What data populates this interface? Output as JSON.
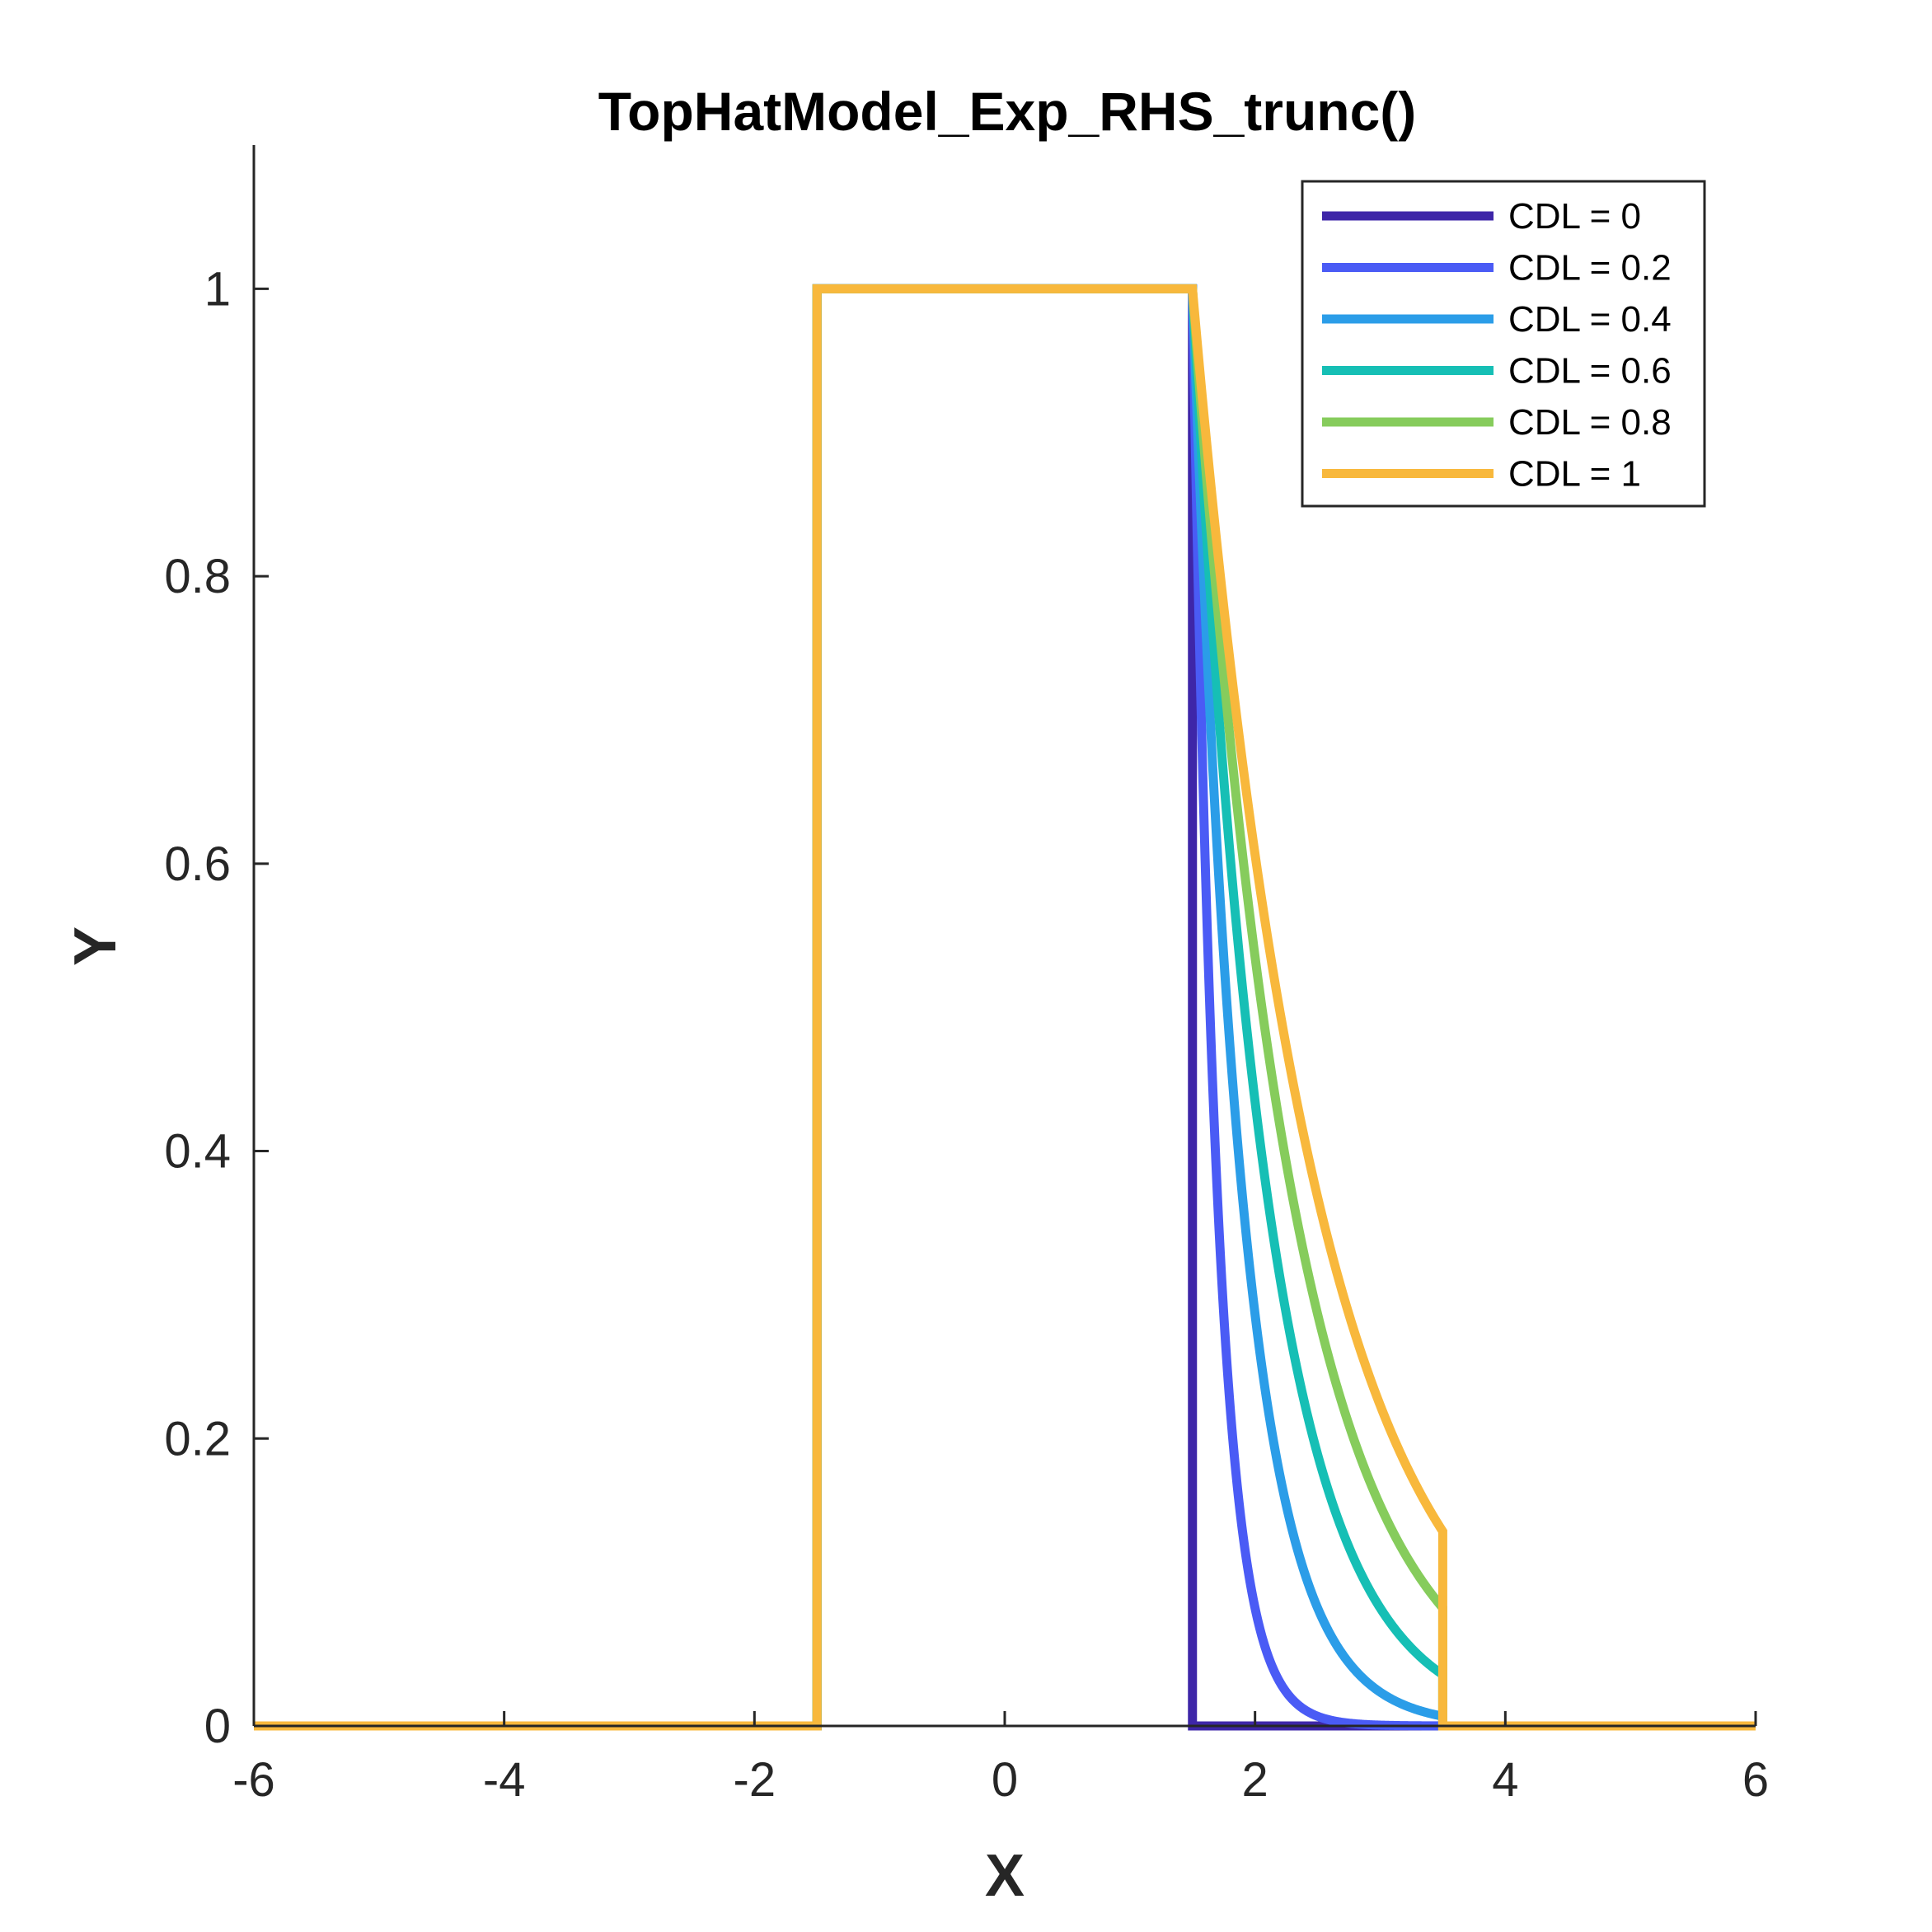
{
  "chart_data": {
    "type": "line",
    "title": "TopHatModel_Exp_RHS_trunc()",
    "xlabel": "X",
    "ylabel": "Y",
    "xlim": [
      -6,
      6
    ],
    "ylim": [
      0,
      1.1
    ],
    "xticks": [
      -6,
      -4,
      -2,
      0,
      2,
      4,
      6
    ],
    "xtick_labels": [
      "-6",
      "-4",
      "-2",
      "0",
      "2",
      "4",
      "6"
    ],
    "yticks": [
      0,
      0.2,
      0.4,
      0.6,
      0.8,
      1
    ],
    "ytick_labels": [
      "0",
      "0.2",
      "0.4",
      "0.6",
      "0.8",
      "1"
    ],
    "grid": false,
    "legend_position": "top-right",
    "model": {
      "hat_start": -1.5,
      "hat_end": 1.5,
      "truncation_x": 3.5,
      "height": 1
    },
    "series": [
      {
        "name": "CDL = 0",
        "cdl": 0,
        "color": "#3e26a8"
      },
      {
        "name": "CDL = 0.2",
        "cdl": 0.2,
        "color": "#4a5bf5"
      },
      {
        "name": "CDL = 0.4",
        "cdl": 0.4,
        "color": "#2b9de8"
      },
      {
        "name": "CDL = 0.6",
        "cdl": 0.6,
        "color": "#16bfb5"
      },
      {
        "name": "CDL = 0.8",
        "cdl": 0.8,
        "color": "#86cc5c"
      },
      {
        "name": "CDL = 1",
        "cdl": 1,
        "color": "#f8b83c"
      }
    ]
  }
}
